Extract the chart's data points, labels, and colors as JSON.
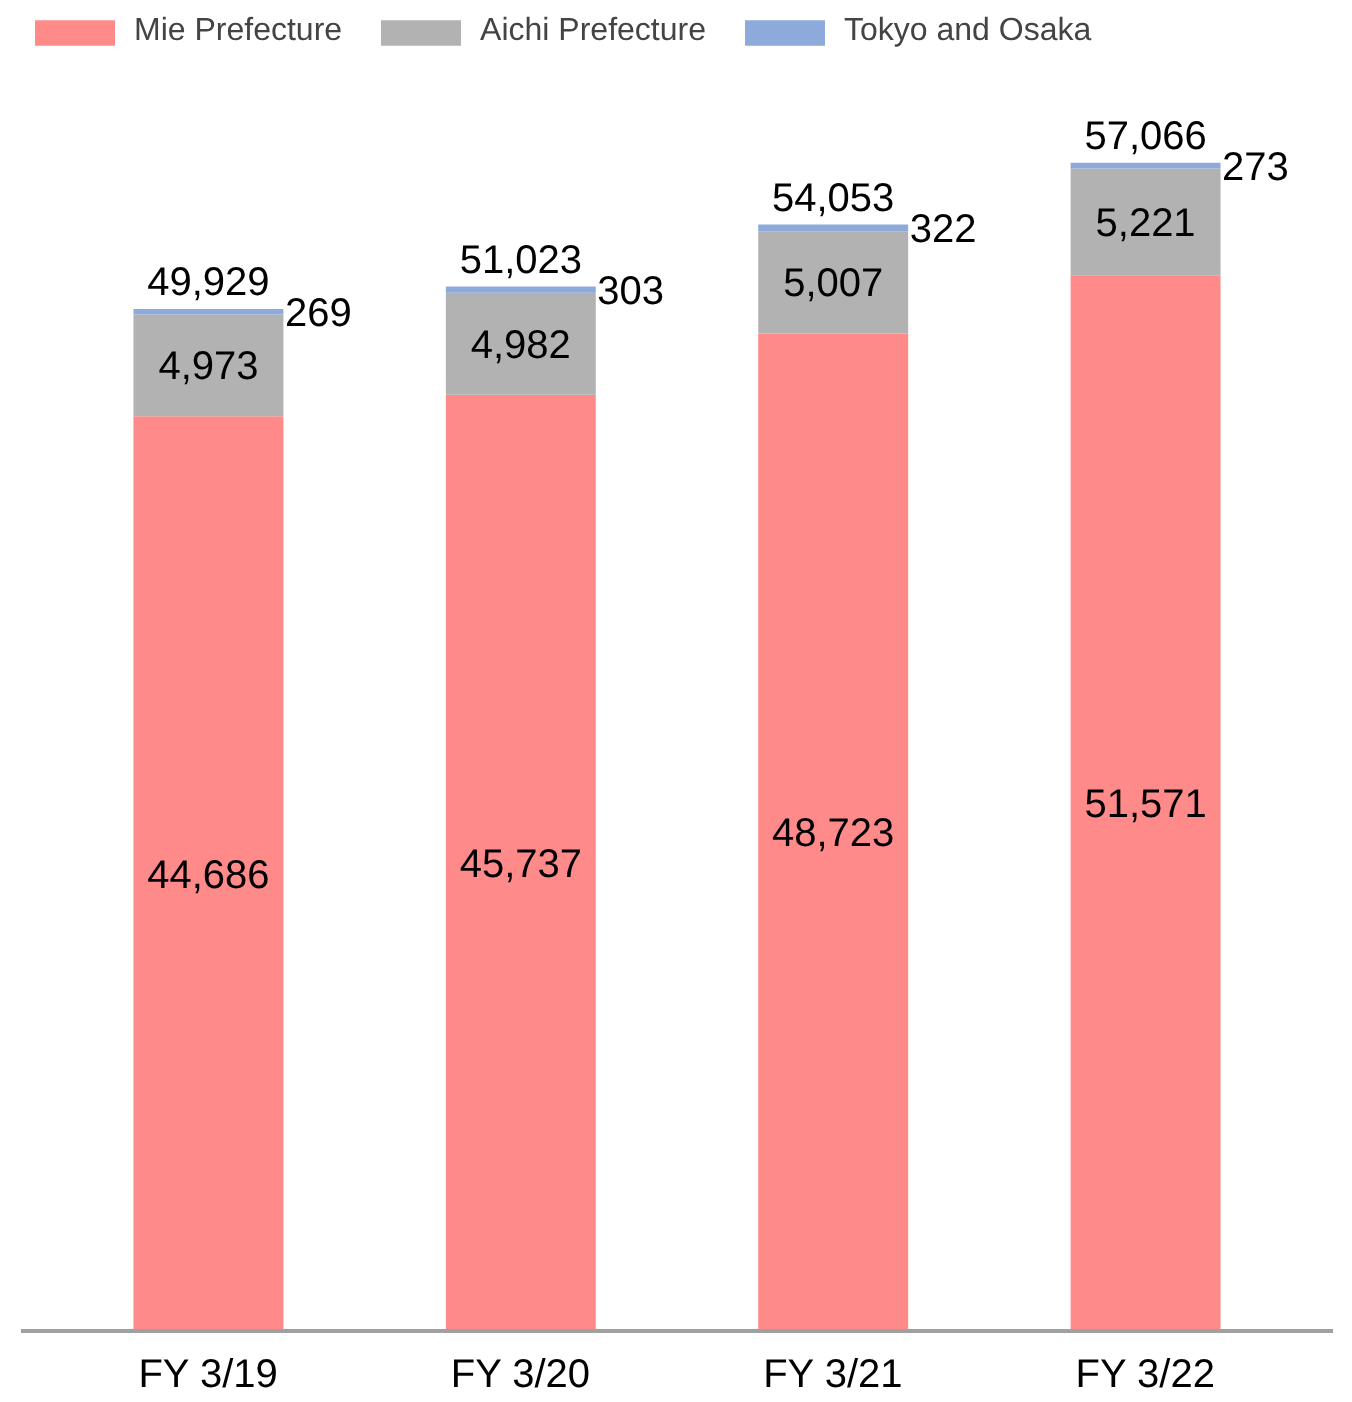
{
  "chart_data": {
    "type": "bar",
    "stacked": true,
    "categories": [
      "FY 3/19",
      "FY 3/20",
      "FY 3/21",
      "FY 3/22"
    ],
    "series": [
      {
        "name": "Mie Prefecture",
        "color": "#ff8a8a",
        "values": [
          44686,
          45737,
          48723,
          51571
        ],
        "value_labels": [
          "44,686",
          "45,737",
          "48,723",
          "51,571"
        ]
      },
      {
        "name": "Aichi Prefecture",
        "color": "#b2b2b2",
        "values": [
          4973,
          4982,
          5007,
          5221
        ],
        "value_labels": [
          "4,973",
          "4,982",
          "5,007",
          "5,221"
        ]
      },
      {
        "name": "Tokyo and Osaka",
        "color": "#8eaadb",
        "values": [
          269,
          303,
          322,
          273
        ],
        "value_labels": [
          "269",
          "303",
          "322",
          "273"
        ]
      }
    ],
    "totals": [
      "49,929",
      "51,023",
      "54,053",
      "57,066"
    ],
    "legend": "top left",
    "grid": false
  }
}
